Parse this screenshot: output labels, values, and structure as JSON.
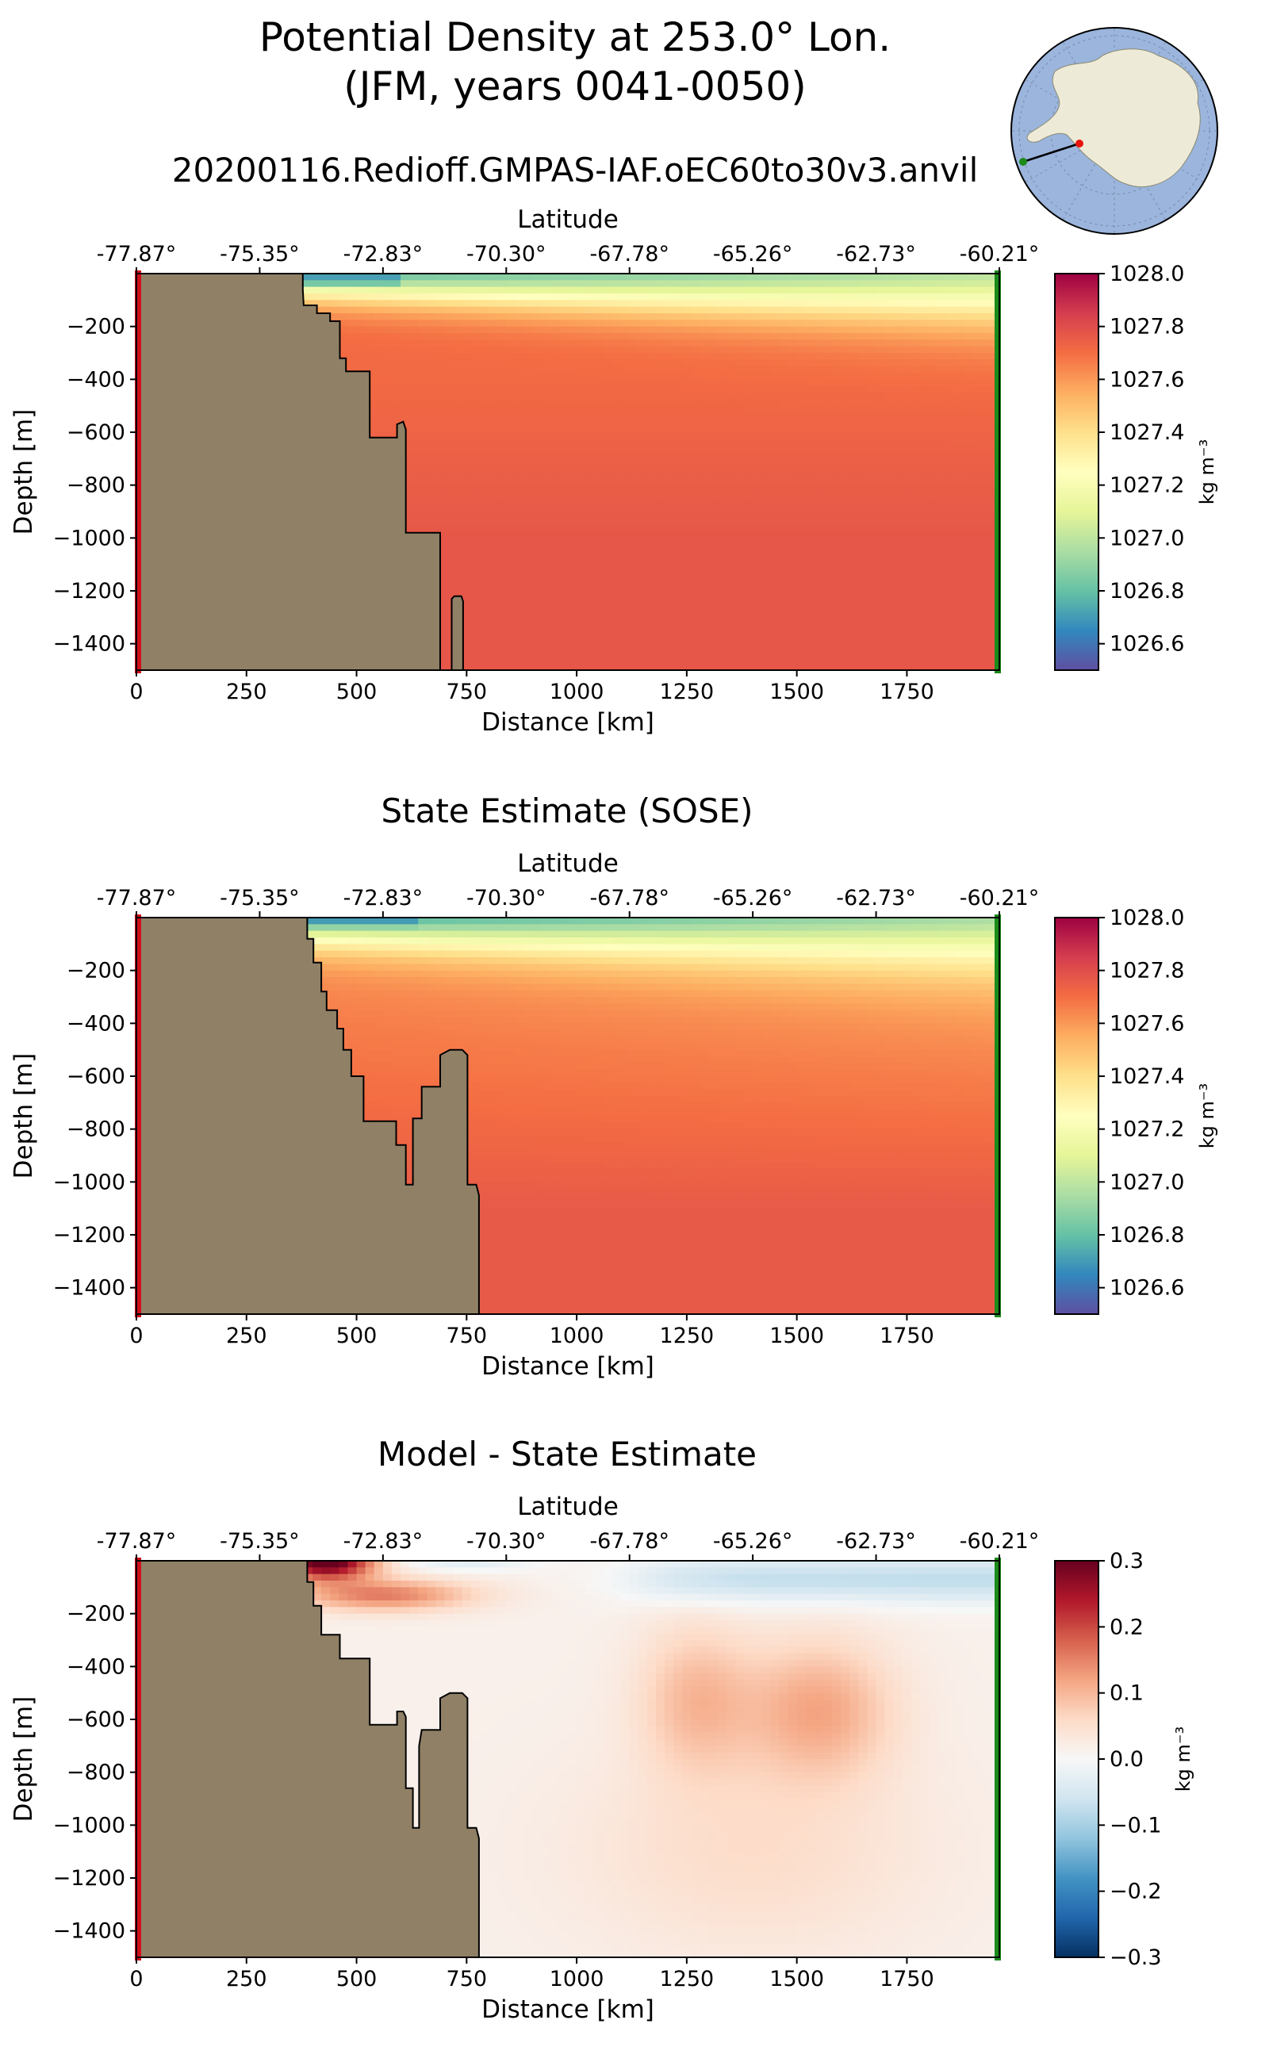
{
  "figure": {
    "title_line1": "Potential Density at 253.0° Lon.",
    "title_line2": "(JFM, years 0041-0050)",
    "run_name": "20200116.Redioff.GMPAS-IAF.oEC60to30v3.anvil",
    "inset_map": {
      "description_free": true,
      "start_marker_color": "#e8140c",
      "end_marker_color": "#1a8a1a"
    },
    "colors": {
      "land": "#8f8066",
      "start_line": "#d0101a",
      "end_line": "#1a8a1a"
    }
  },
  "chart_data": [
    {
      "type": "heatmap",
      "panel_title": "",
      "xlabel": "Distance [km]",
      "ylabel": "Depth [m]",
      "top_axis_label": "Latitude",
      "top_ticks": [
        "-77.87°",
        "-75.35°",
        "-72.83°",
        "-70.30°",
        "-67.78°",
        "-65.26°",
        "-62.73°",
        "-60.21°"
      ],
      "x_ticks": [
        0,
        250,
        500,
        750,
        1000,
        1250,
        1500,
        1750
      ],
      "y_ticks": [
        -200,
        -400,
        -600,
        -800,
        -1000,
        -1200,
        -1400
      ],
      "xlim": [
        0,
        1960
      ],
      "ylim": [
        -1500,
        0
      ],
      "colorbar": {
        "label": "kg m⁻³",
        "ticks": [
          "1028.0",
          "1027.8",
          "1027.6",
          "1027.4",
          "1027.2",
          "1027.0",
          "1026.8",
          "1026.6"
        ],
        "tick_values": [
          1028.0,
          1027.8,
          1027.6,
          1027.4,
          1027.2,
          1027.0,
          1026.8,
          1026.6
        ],
        "range": [
          1026.5,
          1028.0
        ],
        "colormap": "Spectral_r"
      },
      "bathymetry_km_depth": [
        [
          0,
          0
        ],
        [
          378,
          0
        ],
        [
          378,
          -60
        ],
        [
          380,
          -120
        ],
        [
          410,
          -120
        ],
        [
          410,
          -150
        ],
        [
          440,
          -150
        ],
        [
          440,
          -180
        ],
        [
          462,
          -180
        ],
        [
          462,
          -320
        ],
        [
          476,
          -320
        ],
        [
          476,
          -370
        ],
        [
          530,
          -370
        ],
        [
          530,
          -620
        ],
        [
          592,
          -620
        ],
        [
          592,
          -570
        ],
        [
          606,
          -560
        ],
        [
          612,
          -590
        ],
        [
          612,
          -980
        ],
        [
          690,
          -980
        ],
        [
          690,
          -1500
        ],
        [
          716,
          -1500
        ],
        [
          716,
          -1230
        ],
        [
          722,
          -1220
        ],
        [
          738,
          -1220
        ],
        [
          742,
          -1240
        ],
        [
          742,
          -1500
        ],
        [
          0,
          -1500
        ]
      ],
      "field_description": "surface layer 1026.6-1027.0, thermocline ~1027.3-1027.5 near 200 m, 1027.6 at 400-800 m, 1027.75 below 1000 m"
    },
    {
      "type": "heatmap",
      "panel_title": "State Estimate (SOSE)",
      "xlabel": "Distance [km]",
      "ylabel": "Depth [m]",
      "top_axis_label": "Latitude",
      "top_ticks": [
        "-77.87°",
        "-75.35°",
        "-72.83°",
        "-70.30°",
        "-67.78°",
        "-65.26°",
        "-62.73°",
        "-60.21°"
      ],
      "x_ticks": [
        0,
        250,
        500,
        750,
        1000,
        1250,
        1500,
        1750
      ],
      "y_ticks": [
        -200,
        -400,
        -600,
        -800,
        -1000,
        -1200,
        -1400
      ],
      "xlim": [
        0,
        1960
      ],
      "ylim": [
        -1500,
        0
      ],
      "colorbar": {
        "label": "kg m⁻³",
        "ticks": [
          "1028.0",
          "1027.8",
          "1027.6",
          "1027.4",
          "1027.2",
          "1027.0",
          "1026.8",
          "1026.6"
        ],
        "tick_values": [
          1028.0,
          1027.8,
          1027.6,
          1027.4,
          1027.2,
          1027.0,
          1026.8,
          1026.6
        ],
        "range": [
          1026.5,
          1028.0
        ],
        "colormap": "Spectral_r"
      },
      "bathymetry_km_depth": [
        [
          0,
          0
        ],
        [
          388,
          0
        ],
        [
          388,
          -80
        ],
        [
          402,
          -80
        ],
        [
          402,
          -170
        ],
        [
          420,
          -170
        ],
        [
          420,
          -280
        ],
        [
          432,
          -280
        ],
        [
          432,
          -350
        ],
        [
          456,
          -350
        ],
        [
          456,
          -420
        ],
        [
          470,
          -420
        ],
        [
          470,
          -500
        ],
        [
          488,
          -500
        ],
        [
          488,
          -600
        ],
        [
          516,
          -600
        ],
        [
          516,
          -770
        ],
        [
          590,
          -770
        ],
        [
          590,
          -860
        ],
        [
          612,
          -860
        ],
        [
          612,
          -1010
        ],
        [
          628,
          -1010
        ],
        [
          628,
          -760
        ],
        [
          648,
          -760
        ],
        [
          648,
          -640
        ],
        [
          690,
          -640
        ],
        [
          690,
          -520
        ],
        [
          712,
          -500
        ],
        [
          740,
          -500
        ],
        [
          752,
          -520
        ],
        [
          752,
          -1010
        ],
        [
          772,
          -1010
        ],
        [
          778,
          -1050
        ],
        [
          778,
          -1500
        ],
        [
          0,
          -1500
        ]
      ],
      "field_description": "surface layer 1026.6-1027.0, thermocline ~1027.3 near 200 m, 1027.5-1027.6 at 400-800 m, 1027.75 below 1000 m"
    },
    {
      "type": "heatmap",
      "panel_title": "Model - State Estimate",
      "xlabel": "Distance [km]",
      "ylabel": "Depth [m]",
      "top_axis_label": "Latitude",
      "top_ticks": [
        "-77.87°",
        "-75.35°",
        "-72.83°",
        "-70.30°",
        "-67.78°",
        "-65.26°",
        "-62.73°",
        "-60.21°"
      ],
      "x_ticks": [
        0,
        250,
        500,
        750,
        1000,
        1250,
        1500,
        1750
      ],
      "y_ticks": [
        -200,
        -400,
        -600,
        -800,
        -1000,
        -1200,
        -1400
      ],
      "xlim": [
        0,
        1960
      ],
      "ylim": [
        -1500,
        0
      ],
      "colorbar": {
        "label": "kg m⁻³",
        "ticks": [
          "0.3",
          "0.2",
          "0.1",
          "0.0",
          "−0.1",
          "−0.2",
          "−0.3"
        ],
        "tick_values": [
          0.3,
          0.2,
          0.1,
          0.0,
          -0.1,
          -0.2,
          -0.3
        ],
        "range": [
          -0.3,
          0.3
        ],
        "colormap": "RdBu_r"
      },
      "bathymetry_km_depth": [
        [
          0,
          0
        ],
        [
          388,
          0
        ],
        [
          388,
          -80
        ],
        [
          402,
          -80
        ],
        [
          402,
          -170
        ],
        [
          420,
          -170
        ],
        [
          420,
          -280
        ],
        [
          462,
          -280
        ],
        [
          462,
          -370
        ],
        [
          530,
          -370
        ],
        [
          530,
          -620
        ],
        [
          592,
          -620
        ],
        [
          592,
          -570
        ],
        [
          606,
          -570
        ],
        [
          612,
          -590
        ],
        [
          612,
          -860
        ],
        [
          628,
          -860
        ],
        [
          628,
          -1010
        ],
        [
          642,
          -1010
        ],
        [
          642,
          -700
        ],
        [
          648,
          -640
        ],
        [
          690,
          -640
        ],
        [
          690,
          -520
        ],
        [
          712,
          -500
        ],
        [
          740,
          -500
        ],
        [
          752,
          -520
        ],
        [
          752,
          -1010
        ],
        [
          772,
          -1010
        ],
        [
          778,
          -1050
        ],
        [
          778,
          -1500
        ],
        [
          0,
          -1500
        ]
      ],
      "field_description": "strong positive up to +0.3 near coast surface (400-600 km), negative ~-0.1 band at 0-150 m from 1150-1960 km, positive ~+0.1 patches near 1250 km and 1550 km at 300-900 m, near zero elsewhere"
    }
  ]
}
